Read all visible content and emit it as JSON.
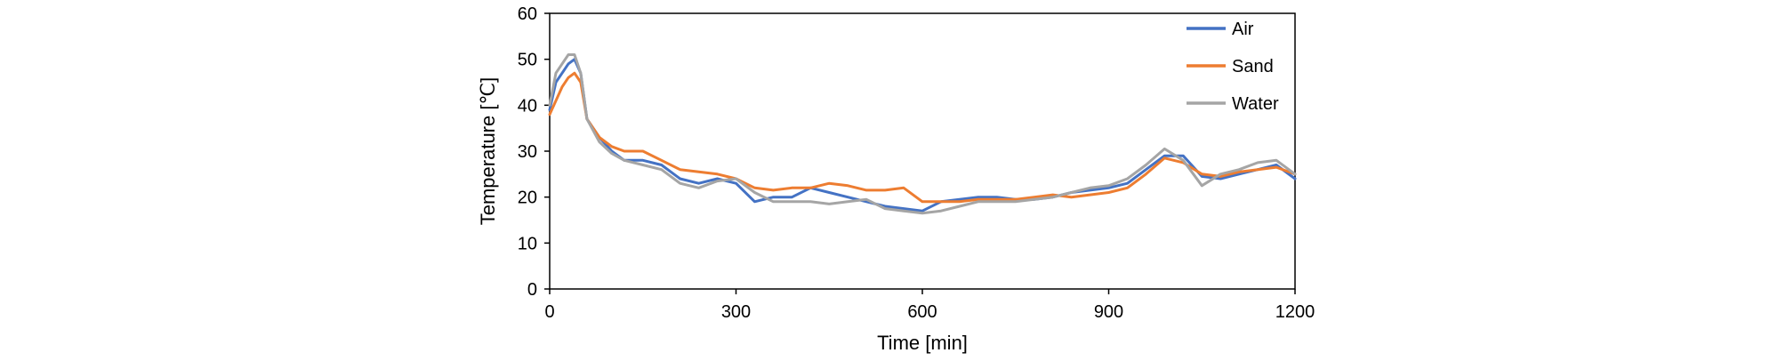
{
  "chart_data": {
    "type": "line",
    "title": "",
    "xlabel": "Time [min]",
    "ylabel": "Temperature [℃]",
    "xlim": [
      0,
      1200
    ],
    "ylim": [
      0,
      60
    ],
    "xticks": [
      0,
      300,
      600,
      900,
      1200
    ],
    "yticks": [
      0,
      10,
      20,
      30,
      40,
      50,
      60
    ],
    "grid": false,
    "legend_position": "top-right",
    "x": [
      0,
      10,
      20,
      30,
      40,
      50,
      60,
      80,
      100,
      120,
      150,
      180,
      210,
      240,
      270,
      300,
      330,
      360,
      390,
      420,
      450,
      480,
      510,
      540,
      570,
      600,
      630,
      660,
      690,
      720,
      750,
      780,
      810,
      840,
      870,
      900,
      930,
      960,
      990,
      1020,
      1050,
      1080,
      1110,
      1140,
      1170,
      1200
    ],
    "series": [
      {
        "name": "Air",
        "color": "#4472C4",
        "values": [
          39,
          45,
          47,
          49,
          50,
          47,
          37,
          33,
          30,
          28,
          28,
          27,
          24,
          23,
          24,
          23,
          19,
          20,
          20,
          22,
          21,
          20,
          19,
          18,
          17.5,
          17,
          19,
          19.5,
          20,
          20,
          19.5,
          19.5,
          20,
          21,
          21.5,
          22,
          23,
          26,
          29,
          29,
          24.5,
          24,
          25,
          26,
          27,
          24
        ]
      },
      {
        "name": "Sand",
        "color": "#ED7D31",
        "values": [
          38,
          41,
          44,
          46,
          47,
          45,
          37,
          33,
          31,
          30,
          30,
          28,
          26,
          25.5,
          25,
          24,
          22,
          21.5,
          22,
          22,
          23,
          22.5,
          21.5,
          21.5,
          22,
          19,
          19,
          19,
          19.5,
          19.5,
          19.5,
          20,
          20.5,
          20,
          20.5,
          21,
          22,
          25,
          28.5,
          27.5,
          25,
          24.5,
          25.5,
          26,
          26.5,
          25
        ]
      },
      {
        "name": "Water",
        "color": "#A5A5A5",
        "values": [
          40,
          47,
          49,
          51,
          51,
          47,
          37,
          32,
          29.5,
          28,
          27,
          26,
          23,
          22,
          23.5,
          24,
          21,
          19,
          19,
          19,
          18.5,
          19,
          19.5,
          17.5,
          17,
          16.5,
          17,
          18,
          19,
          19,
          19,
          19.5,
          20,
          21,
          22,
          22.5,
          24,
          27,
          30.5,
          28,
          22.5,
          25,
          26,
          27.5,
          28,
          25
        ]
      }
    ]
  }
}
